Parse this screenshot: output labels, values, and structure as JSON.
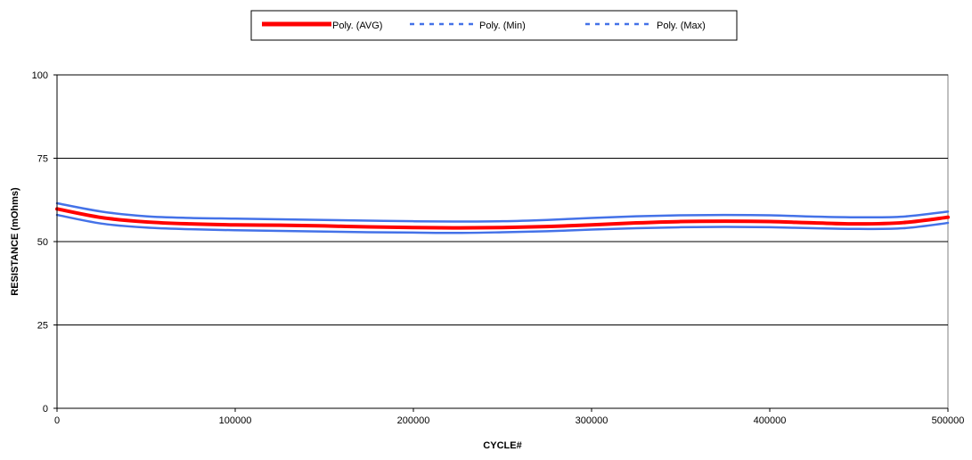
{
  "chart_data": {
    "type": "line",
    "title": "",
    "xlabel": "CYCLE#",
    "ylabel": "RESISTANCE (mOhms)",
    "xlim": [
      0,
      500000
    ],
    "ylim": [
      0,
      100
    ],
    "x_ticks": [
      0,
      100000,
      200000,
      300000,
      400000,
      500000
    ],
    "y_ticks": [
      0,
      25,
      50,
      75,
      100
    ],
    "grid": "horizontal",
    "legend_position": "top",
    "x": [
      0,
      25000,
      50000,
      75000,
      100000,
      125000,
      150000,
      175000,
      200000,
      225000,
      250000,
      275000,
      300000,
      325000,
      350000,
      375000,
      400000,
      425000,
      450000,
      475000,
      500000
    ],
    "series": [
      {
        "name": "Poly. (AVG)",
        "color": "#ff0000",
        "style": "solid",
        "values": [
          59.8,
          57.2,
          55.9,
          55.3,
          55.0,
          54.9,
          54.7,
          54.4,
          54.2,
          54.1,
          54.2,
          54.5,
          55.0,
          55.6,
          56.0,
          56.1,
          56.0,
          55.6,
          55.3,
          55.7,
          57.3
        ]
      },
      {
        "name": "Poly. (Min)",
        "color": "#4472e8",
        "style": "dashed",
        "values": [
          58.0,
          55.4,
          54.2,
          53.7,
          53.4,
          53.2,
          53.0,
          52.8,
          52.7,
          52.6,
          52.8,
          53.1,
          53.6,
          54.0,
          54.3,
          54.4,
          54.3,
          54.0,
          53.8,
          54.0,
          55.6
        ]
      },
      {
        "name": "Poly. (Max)",
        "color": "#4472e8",
        "style": "dashed",
        "values": [
          61.5,
          59.0,
          57.6,
          57.1,
          56.9,
          56.7,
          56.5,
          56.3,
          56.1,
          56.0,
          56.1,
          56.5,
          57.1,
          57.6,
          57.9,
          58.0,
          57.9,
          57.5,
          57.3,
          57.5,
          59.0
        ]
      }
    ]
  }
}
